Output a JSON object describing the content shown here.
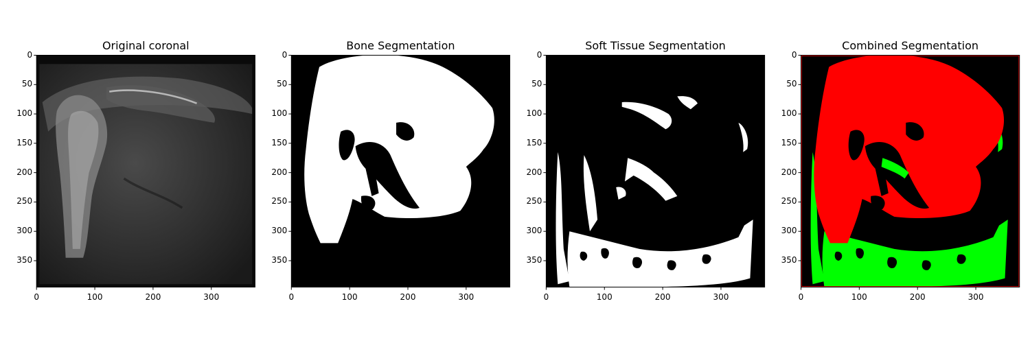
{
  "panels": [
    {
      "title": "Original coronal",
      "kind": "mri"
    },
    {
      "title": "Bone Segmentation",
      "kind": "bone"
    },
    {
      "title": "Soft Tissue Segmentation",
      "kind": "soft"
    },
    {
      "title": "Combined Segmentation",
      "kind": "combined"
    }
  ],
  "axes": {
    "x_ticks": [
      "0",
      "100",
      "200",
      "300"
    ],
    "y_ticks": [
      "0",
      "50",
      "100",
      "150",
      "200",
      "250",
      "300",
      "350"
    ]
  },
  "colors": {
    "bone": "#ff0000",
    "soft_tissue": "#00ff00",
    "background": "#000000",
    "mask_white": "#ffffff"
  }
}
